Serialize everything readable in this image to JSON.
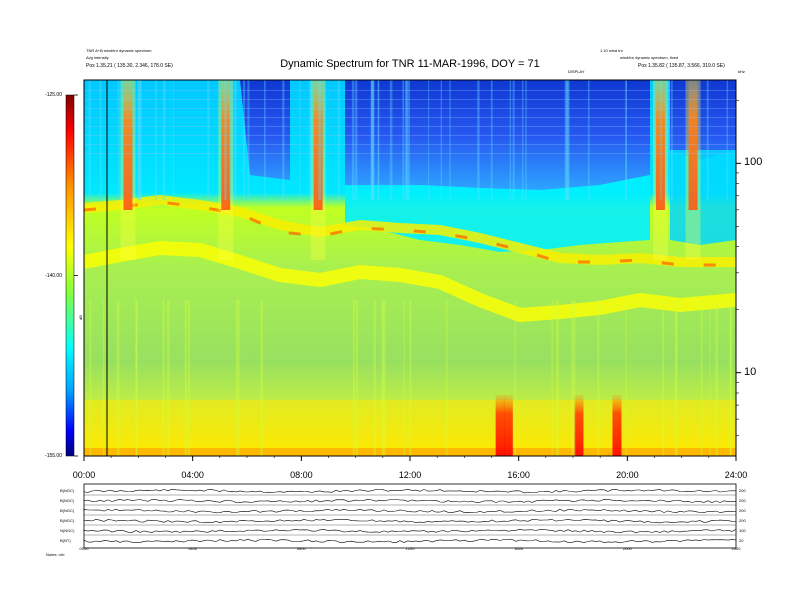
{
  "header": {
    "title": "Dynamic Spectrum for TNR 11-MAR-1996, DOY = 71",
    "left_line1": "TNR A+B  wind/tnr dynamic spectrum",
    "left_line2": "Avg intensity",
    "left_line3": "Pos    1.35.21  ( 135.30, 2.346, 178.0 SE)",
    "right_line1": "1.10 wind tnr",
    "right_line2": "wind/tnr dynamic spectrum, fixed",
    "right_line3": "Pos    1.35.82  ( 135.87, 3.566, 319.0 SE)",
    "right_small": "Date",
    "center_small": "DISPLAY",
    "corner_small": "kHz",
    "colorbar_label": "dB"
  },
  "chart_data": {
    "type": "heatmap",
    "title": "Dynamic Spectrum for TNR 11-MAR-1996, DOY = 71",
    "x_ticks": [
      "00:00",
      "04:00",
      "08:00",
      "12:00",
      "16:00",
      "20:00",
      "24:00"
    ],
    "x_range_hours": [
      0,
      24
    ],
    "y_ticks": [
      "100",
      "10"
    ],
    "y_scale": "log",
    "y_range_khz": [
      4,
      250
    ],
    "colorbar_ticks": [
      "-125.00",
      "-140.00",
      "-155.00"
    ],
    "colorbar_range": [
      -155,
      -125
    ],
    "colormap": [
      "#000080",
      "#0000ff",
      "#00aaff",
      "#00ffff",
      "#80ff60",
      "#ffff00",
      "#ff8000",
      "#ff0000",
      "#800000"
    ],
    "bands": [
      {
        "name": "background-lower",
        "color": "#98e060"
      },
      {
        "name": "upper-blue",
        "color": "#2040e0"
      },
      {
        "name": "cyan-band",
        "color": "#00e8ff"
      }
    ],
    "bursts_hours": [
      1.6,
      5.2,
      8.6,
      15.3,
      15.6,
      18.2,
      19.6,
      21.2,
      22.4
    ],
    "timeseries_panels": [
      {
        "label": "B(NGC)",
        "right_tick": "200"
      },
      {
        "label": "B(NGC)",
        "right_tick": "200"
      },
      {
        "label": "B(NGC)",
        "right_tick": "200"
      },
      {
        "label": "B(NGC)",
        "right_tick": "200"
      },
      {
        "label": "N(NGC)",
        "right_tick": "100"
      },
      {
        "label": "B(NT)",
        "right_tick": "20"
      }
    ],
    "timeseries_x_ticks": [
      "0000",
      "0400",
      "0800",
      "1200",
      "1600",
      "2000",
      "2400"
    ]
  },
  "footer": {
    "label": "Notes:  orb"
  }
}
